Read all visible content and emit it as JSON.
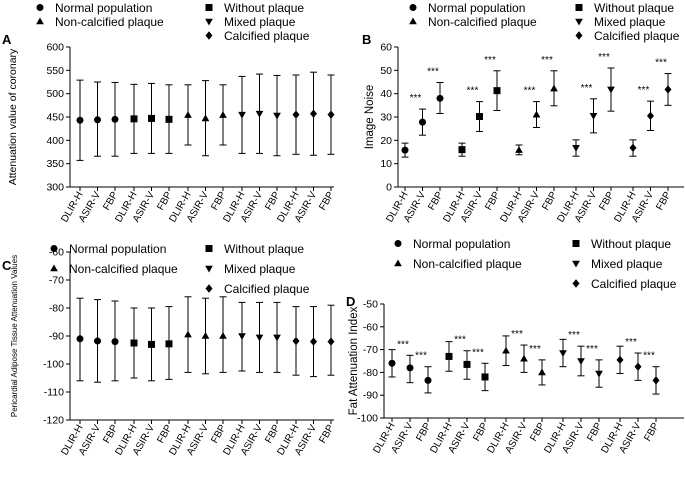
{
  "chart_data": [
    {
      "panel": "A",
      "type": "scatter",
      "legend": [
        {
          "label": "Normal population",
          "marker": "circle"
        },
        {
          "label": "Non-calcified plaque",
          "marker": "triangle-up"
        },
        {
          "label": "Without plaque",
          "marker": "square"
        },
        {
          "label": "Mixed plaque",
          "marker": "triangle-down"
        },
        {
          "label": "Calcified plaque",
          "marker": "diamond"
        }
      ],
      "ylabel": "Attenuation value of  coronary",
      "ylim": [
        300,
        600
      ],
      "yticks": [
        300,
        350,
        400,
        450,
        500,
        550,
        600
      ],
      "categories": [
        "DLIR-H",
        "ASIR-V",
        "FBP"
      ],
      "series": [
        {
          "name": "Normal population",
          "marker": "circle",
          "mean": [
            443,
            444,
            445
          ],
          "lower": [
            357,
            366,
            366
          ],
          "upper": [
            529,
            525,
            524
          ]
        },
        {
          "name": "Without plaque",
          "marker": "square",
          "mean": [
            446,
            447,
            445
          ],
          "lower": [
            372,
            372,
            372
          ],
          "upper": [
            520,
            522,
            519
          ]
        },
        {
          "name": "Non-calcified plaque",
          "marker": "triangle-up",
          "mean": [
            454,
            447,
            454
          ],
          "lower": [
            390,
            367,
            390
          ],
          "upper": [
            519,
            528,
            519
          ]
        },
        {
          "name": "Mixed plaque",
          "marker": "triangle-down",
          "mean": [
            455,
            457,
            453
          ],
          "lower": [
            372,
            372,
            367
          ],
          "upper": [
            537,
            542,
            539
          ]
        },
        {
          "name": "Calcified plaque",
          "marker": "diamond",
          "mean": [
            455,
            457,
            455
          ],
          "lower": [
            370,
            368,
            370
          ],
          "upper": [
            540,
            546,
            540
          ]
        }
      ],
      "significance": []
    },
    {
      "panel": "B",
      "type": "scatter",
      "legend": [
        {
          "label": "Normal population",
          "marker": "circle"
        },
        {
          "label": "Non-calcified plaque",
          "marker": "triangle-up"
        },
        {
          "label": "Without plaque",
          "marker": "square"
        },
        {
          "label": "Mixed plaque",
          "marker": "triangle-down"
        },
        {
          "label": "Calcified plaque",
          "marker": "diamond"
        }
      ],
      "ylabel": "Image Noise",
      "ylim": [
        0,
        60
      ],
      "yticks": [
        0,
        10,
        20,
        30,
        40,
        50,
        60
      ],
      "categories": [
        "DLIR-H",
        "ASIR-V",
        "FBP"
      ],
      "series": [
        {
          "name": "Normal population",
          "marker": "circle",
          "mean": [
            15.8,
            27.8,
            38.0
          ],
          "lower": [
            12.8,
            22.2,
            31.5
          ],
          "upper": [
            18.8,
            33.4,
            44.8
          ]
        },
        {
          "name": "Without plaque",
          "marker": "square",
          "mean": [
            16.0,
            30.2,
            41.3
          ],
          "lower": [
            13.2,
            23.8,
            32.8
          ],
          "upper": [
            18.8,
            36.6,
            49.8
          ]
        },
        {
          "name": "Non-calcified plaque",
          "marker": "triangle-up",
          "mean": [
            15.8,
            31.0,
            42.2
          ],
          "lower": [
            13.8,
            25.5,
            34.8
          ],
          "upper": [
            18.0,
            36.6,
            49.8
          ]
        },
        {
          "name": "Mixed plaque",
          "marker": "triangle-down",
          "mean": [
            16.8,
            30.5,
            41.8
          ],
          "lower": [
            13.2,
            23.2,
            32.5
          ],
          "upper": [
            20.2,
            37.8,
            51.0
          ]
        },
        {
          "name": "Calcified plaque",
          "marker": "diamond",
          "mean": [
            16.8,
            30.5,
            41.8
          ],
          "lower": [
            13.2,
            24.2,
            35.0
          ],
          "upper": [
            20.2,
            36.8,
            48.6
          ]
        }
      ],
      "significance": [
        "***",
        "***"
      ]
    },
    {
      "panel": "C",
      "type": "scatter",
      "legend": [
        {
          "label": "Normal population",
          "marker": "circle"
        },
        {
          "label": "Non-calcified plaque",
          "marker": "triangle-up"
        },
        {
          "label": "Without plaque",
          "marker": "square"
        },
        {
          "label": "Mixed plaque",
          "marker": "triangle-down"
        },
        {
          "label": "Calcified plaque",
          "marker": "diamond"
        }
      ],
      "ylabel": "Pericardial Adipose Tissue Attenuation Values",
      "ylim": [
        -120,
        -60
      ],
      "yticks": [
        -120,
        -110,
        -100,
        -90,
        -80,
        -70,
        -60
      ],
      "categories": [
        "DLIR-H",
        "ASIR-V",
        "FBP"
      ],
      "series": [
        {
          "name": "Normal population",
          "marker": "circle",
          "mean": [
            -91.0,
            -91.8,
            -92.0
          ],
          "lower": [
            -106.0,
            -106.5,
            -106.0
          ],
          "upper": [
            -76.5,
            -77.0,
            -77.5
          ]
        },
        {
          "name": "Without plaque",
          "marker": "square",
          "mean": [
            -92.5,
            -93.0,
            -92.8
          ],
          "lower": [
            -105.0,
            -106.0,
            -105.5
          ],
          "upper": [
            -80.0,
            -80.0,
            -79.5
          ]
        },
        {
          "name": "Non-calcified plaque",
          "marker": "triangle-up",
          "mean": [
            -89.5,
            -90.0,
            -90.0
          ],
          "lower": [
            -103.0,
            -103.5,
            -103.0
          ],
          "upper": [
            -76.0,
            -76.5,
            -76.0
          ]
        },
        {
          "name": "Mixed plaque",
          "marker": "triangle-down",
          "mean": [
            -90.0,
            -90.5,
            -90.5
          ],
          "lower": [
            -102.5,
            -103.0,
            -103.0
          ],
          "upper": [
            -78.0,
            -78.0,
            -78.0
          ]
        },
        {
          "name": "Calcified plaque",
          "marker": "diamond",
          "mean": [
            -91.8,
            -92.0,
            -92.0
          ],
          "lower": [
            -104.0,
            -104.5,
            -104.0
          ],
          "upper": [
            -79.5,
            -79.5,
            -79.0
          ]
        }
      ],
      "significance": []
    },
    {
      "panel": "D",
      "type": "scatter",
      "legend": [
        {
          "label": "Normal population",
          "marker": "circle"
        },
        {
          "label": "Non-calcified plaque",
          "marker": "triangle-up"
        },
        {
          "label": "Without plaque",
          "marker": "square"
        },
        {
          "label": "Mixed plaque",
          "marker": "triangle-down"
        },
        {
          "label": "Calcified plaque",
          "marker": "diamond"
        }
      ],
      "ylabel": "Fat Attenuation Index",
      "ylim": [
        -100,
        -50
      ],
      "yticks": [
        -100,
        -90,
        -80,
        -70,
        -60,
        -50
      ],
      "categories": [
        "DLIR-H",
        "ASIR-V",
        "FBP"
      ],
      "series": [
        {
          "name": "Normal population",
          "marker": "circle",
          "mean": [
            -76.0,
            -78.0,
            -83.5
          ],
          "lower": [
            -82.0,
            -84.5,
            -89.0
          ],
          "upper": [
            -70.0,
            -72.5,
            -77.5
          ]
        },
        {
          "name": "Without plaque",
          "marker": "square",
          "mean": [
            -73.0,
            -76.5,
            -82.0
          ],
          "lower": [
            -79.5,
            -83.0,
            -88.0
          ],
          "upper": [
            -66.5,
            -70.5,
            -76.0
          ]
        },
        {
          "name": "Non-calcified plaque",
          "marker": "triangle-up",
          "mean": [
            -70.5,
            -74.0,
            -80.0
          ],
          "lower": [
            -77.0,
            -80.0,
            -85.5
          ],
          "upper": [
            -64.0,
            -68.0,
            -74.5
          ]
        },
        {
          "name": "Mixed plaque",
          "marker": "triangle-down",
          "mean": [
            -71.5,
            -75.0,
            -80.5
          ],
          "lower": [
            -77.5,
            -81.5,
            -86.5
          ],
          "upper": [
            -65.5,
            -68.5,
            -74.5
          ]
        },
        {
          "name": "Calcified plaque",
          "marker": "diamond",
          "mean": [
            -74.5,
            -77.5,
            -83.5
          ],
          "lower": [
            -80.5,
            -83.5,
            -89.5
          ],
          "upper": [
            -68.5,
            -71.5,
            -77.5
          ]
        }
      ],
      "significance": [
        "***",
        "***"
      ]
    }
  ]
}
